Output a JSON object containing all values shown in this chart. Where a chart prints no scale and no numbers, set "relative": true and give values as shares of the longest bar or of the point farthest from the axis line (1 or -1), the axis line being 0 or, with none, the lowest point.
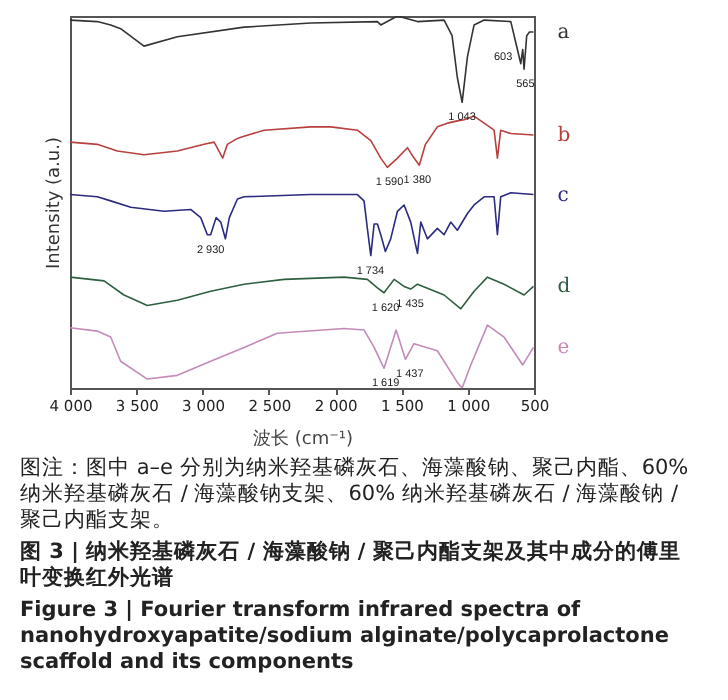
{
  "chart_data": {
    "type": "line",
    "relative": true,
    "xlabel": "波长 (cm⁻¹)",
    "ylabel": "Intensity (a.u.)",
    "title": "图 3 | 纳米羟基磷灰石 / 海藻酸钠 / 聚己内酯支架及其中成分的傅里叶变换红外光谱",
    "subtitle": "Figure 3 | Fourier transform infrared spectra of nanohydroxyapatite/sodium alginate/polycaprolactone scaffold and its components",
    "xlim": [
      4000,
      500
    ],
    "xticks": [
      {
        "value": 4000,
        "label": "4 000"
      },
      {
        "value": 3500,
        "label": "3 500"
      },
      {
        "value": 3000,
        "label": "3 000"
      },
      {
        "value": 2500,
        "label": "2 500"
      },
      {
        "value": 2000,
        "label": "2 000"
      },
      {
        "value": 1500,
        "label": "1 500"
      },
      {
        "value": 1000,
        "label": "1 000"
      },
      {
        "value": 500,
        "label": "500"
      }
    ],
    "grid": false,
    "legend": false,
    "tick_labels": "x",
    "series": [
      {
        "name": "a",
        "color": "#333333",
        "x": [
          4000,
          3794,
          3693,
          3618,
          3442,
          3190,
          2687,
          2184,
          1681,
          1656,
          1530,
          1379,
          1178,
          1118,
          1078,
          1042,
          1002,
          952,
          876,
          675,
          625,
          600,
          585,
          575,
          555,
          534,
          504
        ],
        "values": [
          0.989,
          0.985,
          0.976,
          0.966,
          0.919,
          0.944,
          0.97,
          0.981,
          0.985,
          0.976,
          1.0,
          0.985,
          0.989,
          0.947,
          0.834,
          0.768,
          0.891,
          0.976,
          0.989,
          0.985,
          0.91,
          0.872,
          0.91,
          0.857,
          0.947,
          0.957,
          0.957
        ]
      },
      {
        "name": "b",
        "color": "#b8403f",
        "x": [
          4000,
          3794,
          3643,
          3442,
          3190,
          2989,
          2913,
          2848,
          2813,
          2747,
          2712,
          2536,
          2184,
          2033,
          1832,
          1731,
          1656,
          1606,
          1530,
          1455,
          1405,
          1365,
          1319,
          1229,
          1153,
          1078,
          1027,
          952,
          876,
          801,
          776,
          751,
          675,
          504
        ],
        "values": [
          0.661,
          0.655,
          0.637,
          0.627,
          0.637,
          0.655,
          0.661,
          0.618,
          0.655,
          0.669,
          0.674,
          0.693,
          0.702,
          0.702,
          0.693,
          0.665,
          0.618,
          0.593,
          0.618,
          0.646,
          0.618,
          0.599,
          0.655,
          0.702,
          0.712,
          0.718,
          0.721,
          0.731,
          0.712,
          0.693,
          0.618,
          0.693,
          0.684,
          0.68
        ]
      },
      {
        "name": "c",
        "color": "#2b2b80",
        "x": [
          4000,
          3794,
          3693,
          3542,
          3291,
          3090,
          3014,
          2964,
          2939,
          2898,
          2863,
          2828,
          2798,
          2737,
          2687,
          2184,
          1832,
          1782,
          1757,
          1731,
          1706,
          1681,
          1656,
          1621,
          1581,
          1530,
          1480,
          1430,
          1379,
          1354,
          1304,
          1229,
          1178,
          1128,
          1078,
          1002,
          952,
          876,
          801,
          776,
          751,
          675,
          504
        ],
        "values": [
          0.52,
          0.514,
          0.503,
          0.486,
          0.475,
          0.48,
          0.458,
          0.412,
          0.412,
          0.458,
          0.446,
          0.401,
          0.458,
          0.508,
          0.514,
          0.52,
          0.52,
          0.503,
          0.429,
          0.356,
          0.441,
          0.441,
          0.412,
          0.367,
          0.401,
          0.475,
          0.492,
          0.446,
          0.362,
          0.446,
          0.401,
          0.429,
          0.412,
          0.446,
          0.424,
          0.469,
          0.492,
          0.514,
          0.514,
          0.412,
          0.514,
          0.525,
          0.52
        ]
      },
      {
        "name": "d",
        "color": "#2f5f40",
        "x": [
          4000,
          3743,
          3593,
          3417,
          3190,
          2939,
          2687,
          2385,
          1933,
          1757,
          1681,
          1631,
          1555,
          1480,
          1430,
          1379,
          1178,
          1052,
          952,
          851,
          726,
          575,
          504
        ],
        "values": [
          0.298,
          0.288,
          0.25,
          0.222,
          0.236,
          0.26,
          0.279,
          0.292,
          0.298,
          0.292,
          0.269,
          0.256,
          0.292,
          0.273,
          0.266,
          0.279,
          0.25,
          0.213,
          0.26,
          0.298,
          0.279,
          0.25,
          0.273
        ]
      },
      {
        "name": "e",
        "color": "#c48ab8",
        "x": [
          4000,
          3794,
          3693,
          3618,
          3417,
          3190,
          2939,
          2687,
          2436,
          1933,
          1782,
          1706,
          1631,
          1540,
          1470,
          1405,
          1229,
          1078,
          1042,
          977,
          851,
          726,
          585,
          504
        ],
        "values": [
          0.162,
          0.153,
          0.137,
          0.072,
          0.024,
          0.034,
          0.072,
          0.109,
          0.147,
          0.16,
          0.156,
          0.109,
          0.053,
          0.156,
          0.077,
          0.119,
          0.1,
          0.015,
          0.0,
          0.062,
          0.169,
          0.137,
          0.062,
          0.109
        ]
      }
    ],
    "annotations": [
      {
        "text": "1 043",
        "x": 1043,
        "y": 0.768
      },
      {
        "text": "603",
        "x": 603,
        "y": 0.872
      },
      {
        "text": "565",
        "x": 565,
        "y": 0.857
      },
      {
        "text": "1 590",
        "x": 1590,
        "y": 0.593
      },
      {
        "text": "1 380",
        "x": 1380,
        "y": 0.599
      },
      {
        "text": "2 930",
        "x": 2939,
        "y": 0.412
      },
      {
        "text": "1 734",
        "x": 1734,
        "y": 0.356
      },
      {
        "text": "1 620",
        "x": 1620,
        "y": 0.256
      },
      {
        "text": "1 435",
        "x": 1435,
        "y": 0.266
      },
      {
        "text": "1 619",
        "x": 1619,
        "y": 0.053
      },
      {
        "text": "1 437",
        "x": 1437,
        "y": 0.077
      },
      "图注：图中 a–e 分别为纳米羟基磷灰石、海藻酸钠、聚己内酯、60% 纳米羟基磷灰石 / 海藻酸钠支架、60% 纳米羟基磷灰石 / 海藻酸钠 / 聚己内酯支架。"
    ]
  }
}
